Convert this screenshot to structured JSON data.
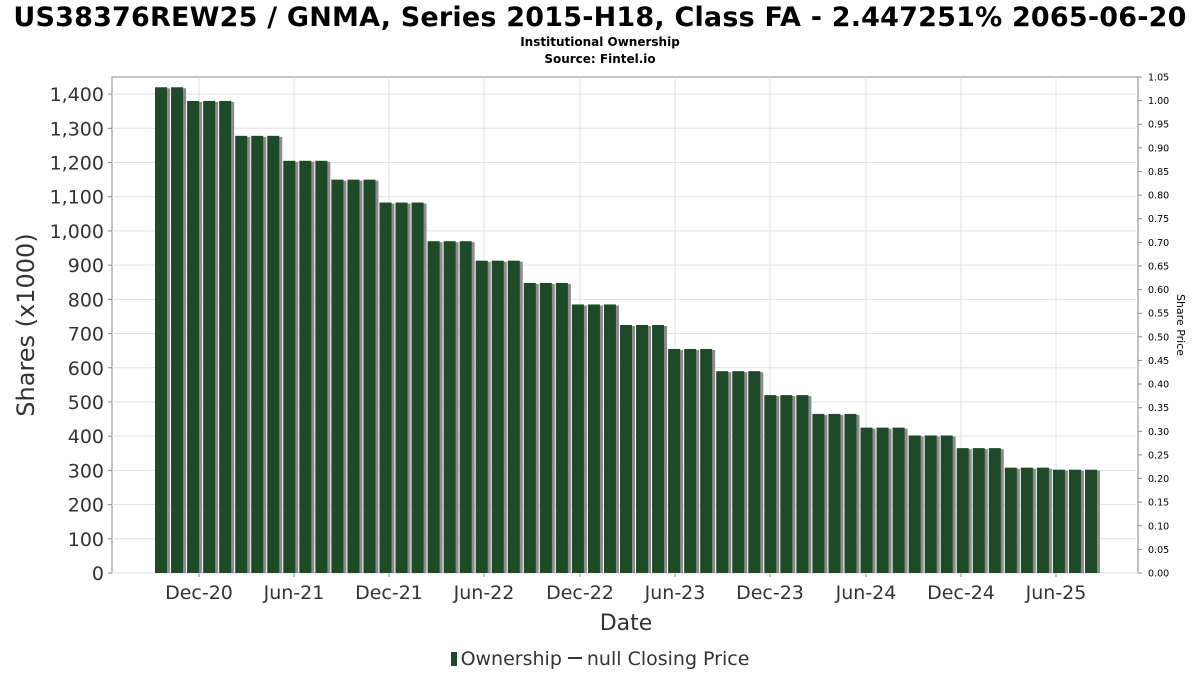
{
  "chart_data": {
    "type": "bar",
    "title": "US38376REW25 / GNMA, Series 2015-H18, Class FA - 2.447251% 2065-06-20",
    "subtitles": [
      "Institutional Ownership",
      "Source: Fintel.io"
    ],
    "xlabel": "Date",
    "ylabel": "Shares (x1000)",
    "y2label": "Share Price",
    "ylim": [
      0,
      1450
    ],
    "y2lim": [
      0,
      1.05
    ],
    "yticks": [
      "0",
      "100",
      "200",
      "300",
      "400",
      "500",
      "600",
      "700",
      "800",
      "900",
      "1,000",
      "1,100",
      "1,200",
      "1,300",
      "1,400"
    ],
    "y2ticks": [
      "0.00",
      "0.05",
      "0.10",
      "0.15",
      "0.20",
      "0.25",
      "0.30",
      "0.35",
      "0.40",
      "0.45",
      "0.50",
      "0.55",
      "0.60",
      "0.65",
      "0.70",
      "0.75",
      "0.80",
      "0.85",
      "0.90",
      "0.95",
      "1.00",
      "1.05"
    ],
    "xticks": [
      "Dec-20",
      "Jun-21",
      "Dec-21",
      "Jun-22",
      "Dec-22",
      "Jun-23",
      "Dec-23",
      "Jun-24",
      "Dec-24",
      "Jun-25"
    ],
    "grid": true,
    "legend_position": "bottom",
    "series": [
      {
        "name": "Ownership",
        "color": "#1e4a27",
        "values": [
          1420,
          1420,
          1380,
          1380,
          1380,
          1278,
          1278,
          1278,
          1205,
          1205,
          1205,
          1150,
          1150,
          1150,
          1083,
          1083,
          1083,
          970,
          970,
          970,
          913,
          913,
          913,
          848,
          848,
          848,
          785,
          785,
          785,
          725,
          725,
          725,
          655,
          655,
          655,
          590,
          590,
          590,
          520,
          520,
          520,
          465,
          465,
          465,
          425,
          425,
          425,
          402,
          402,
          402,
          365,
          365,
          365,
          308,
          308,
          308,
          302,
          302,
          302
        ]
      }
    ],
    "legend": {
      "ownership_label": "Ownership",
      "price_label": "null Closing Price"
    }
  }
}
